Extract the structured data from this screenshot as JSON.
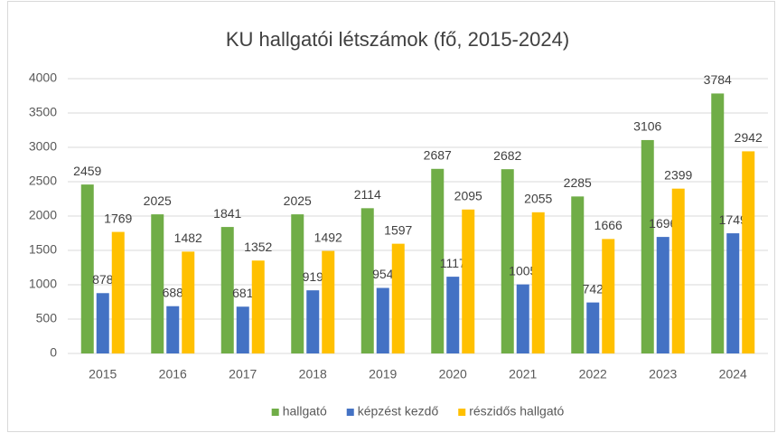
{
  "chart_data": {
    "type": "bar",
    "title": "KU hallgatói létszámok (fő, 2015-2024)",
    "categories": [
      "2015",
      "2016",
      "2017",
      "2018",
      "2019",
      "2020",
      "2021",
      "2022",
      "2023",
      "2024"
    ],
    "series": [
      {
        "name": "hallgató",
        "color": "#70ad47",
        "values": [
          2459,
          2025,
          1841,
          2025,
          2114,
          2687,
          2682,
          2285,
          3106,
          3784
        ]
      },
      {
        "name": "képzést kezdő",
        "color": "#4472c4",
        "values": [
          878,
          688,
          681,
          919,
          954,
          1117,
          1005,
          742,
          1696,
          1749
        ]
      },
      {
        "name": "részidős hallgató",
        "color": "#ffc000",
        "values": [
          1769,
          1482,
          1352,
          1492,
          1597,
          2095,
          2055,
          1666,
          2399,
          2942
        ]
      }
    ],
    "ylim": [
      0,
      4000
    ],
    "yticks": [
      0,
      500,
      1000,
      1500,
      2000,
      2500,
      3000,
      3500,
      4000
    ],
    "grid": true,
    "legend": "bottom"
  }
}
